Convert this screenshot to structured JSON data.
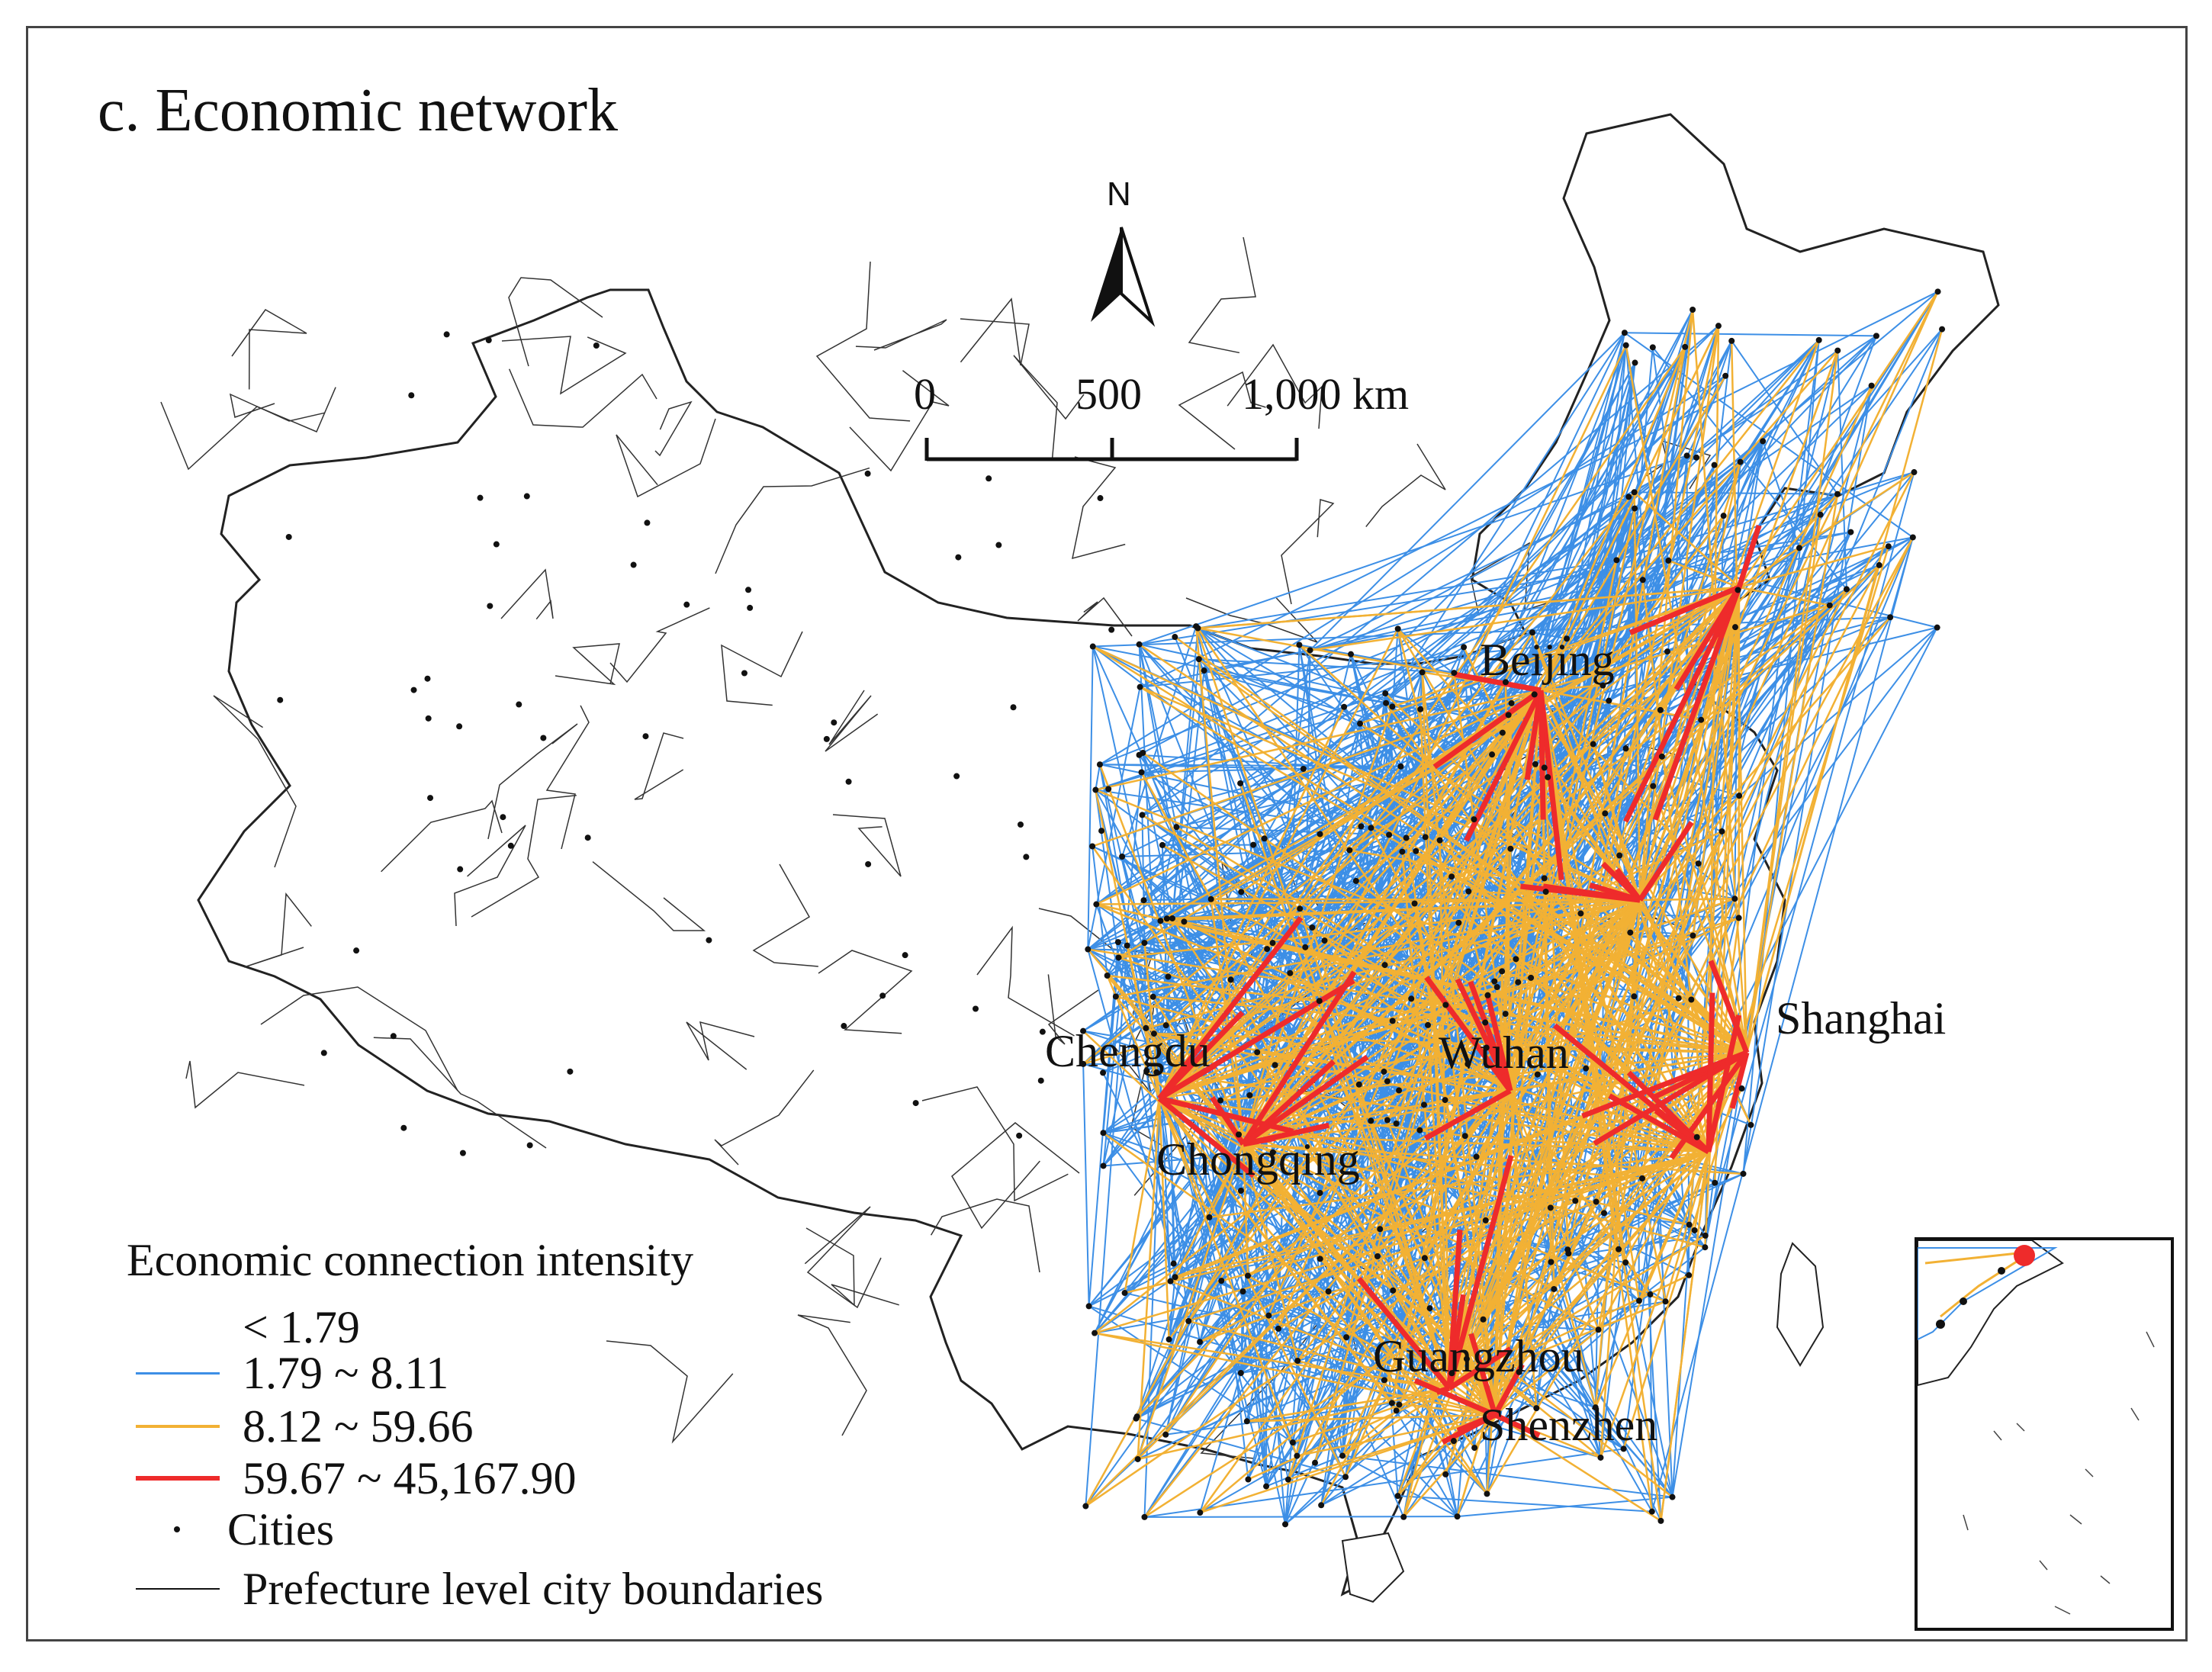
{
  "title": "c. Economic network",
  "north_label": "N",
  "scale_bar": {
    "labels": [
      "0",
      "500",
      "1,000 km"
    ]
  },
  "cities": {
    "beijing": "Beijing",
    "shanghai": "Shanghai",
    "chengdu": "Chengdu",
    "wuhan": "Wuhan",
    "chongqing": "Chongqing",
    "guangzhou": "Guangzhou",
    "shenzhen": "Shenzhen"
  },
  "legend": {
    "title": "Economic connection intensity",
    "classes": [
      {
        "label": "< 1.79",
        "color": ""
      },
      {
        "label": "1.79 ~ 8.11",
        "color": "#3d8fe6"
      },
      {
        "label": "8.12 ~ 59.66",
        "color": "#f2b134"
      },
      {
        "label": "59.67 ~ 45,167.90",
        "color": "#ee2b2b"
      }
    ],
    "cities_label": "Cities",
    "boundaries_label": "Prefecture level city boundaries",
    "boundary_color": "#111111"
  },
  "colors": {
    "weak_link": "#3d8fe6",
    "medium_link": "#f2b134",
    "strong_link": "#ee2b2b",
    "city_dot": "#111111"
  }
}
